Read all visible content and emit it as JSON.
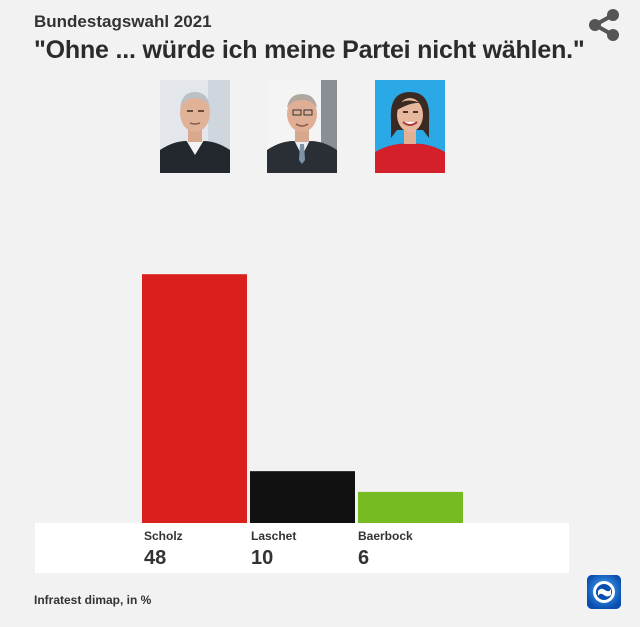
{
  "header": {
    "supertitle": "Bundestagswahl 2021",
    "title": "\"Ohne ... würde ich meine Partei nicht wählen.\""
  },
  "icons": {
    "share": "share-icon",
    "logo": "tagesschau-logo-icon"
  },
  "chart_data": {
    "type": "bar",
    "categories": [
      "Scholz",
      "Laschet",
      "Baerbock"
    ],
    "values": [
      48,
      10,
      6
    ],
    "colors": [
      "#d9201c",
      "#111111",
      "#76bb21"
    ],
    "value_labels": [
      "48",
      "10",
      "6"
    ],
    "title": "\"Ohne ... würde ich meine Partei nicht wählen.\"",
    "ylim": [
      0,
      60
    ],
    "grid": false,
    "legend": "none"
  },
  "source": "Infratest dimap, in %"
}
